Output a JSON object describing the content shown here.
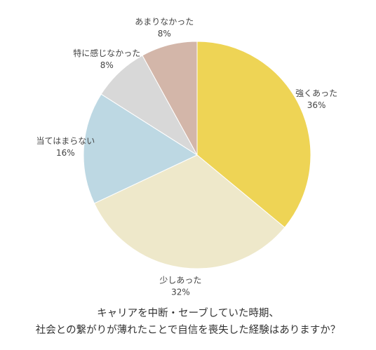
{
  "chart_data": {
    "type": "pie",
    "title_lines": [
      "キャリアを中断・セーブしていた時期、",
      "社会との繋がりが薄れたことで自信を喪失した経験はありますか？"
    ],
    "slices": [
      {
        "label": "強くあった",
        "value": 36,
        "value_label": "36%",
        "color": "#EED455"
      },
      {
        "label": "少しあった",
        "value": 32,
        "value_label": "32%",
        "color": "#EEE8CA"
      },
      {
        "label": "当てはまらない",
        "value": 16,
        "value_label": "16%",
        "color": "#BDD8E3"
      },
      {
        "label": "特に感じなかった",
        "value": 8,
        "value_label": "8%",
        "color": "#D8D8D8"
      },
      {
        "label": "あまりなかった",
        "value": 8,
        "value_label": "8%",
        "color": "#D3B6A9"
      }
    ],
    "start": "12 o'clock, clockwise"
  }
}
